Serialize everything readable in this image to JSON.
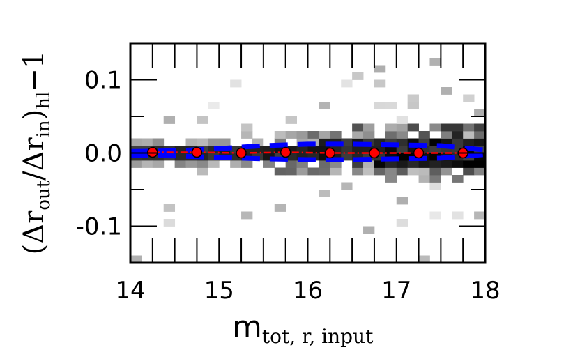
{
  "chart_data": {
    "type": "heatmap",
    "xlabel": {
      "main": "m",
      "sub": "tot, r, input"
    },
    "ylabel": {
      "text": "(Δr",
      "sub1": "out",
      "mid": "/Δr",
      "sub2": "in",
      "close": ")",
      "sub3": "hl",
      "tail": "−1"
    },
    "xlim": [
      14,
      18
    ],
    "ylim": [
      -0.15,
      0.15
    ],
    "x_ticks": [
      14,
      15,
      16,
      17,
      18
    ],
    "x_tick_labels": [
      "14",
      "15",
      "16",
      "17",
      "18"
    ],
    "y_ticks": [
      0.1,
      0.0,
      -0.1
    ],
    "y_tick_labels": [
      "0.1",
      "0.0",
      "-0.1"
    ],
    "grid": false,
    "heatmap": {
      "x_bin_width": 0.125,
      "y_bin_width": 0.01,
      "colormap": "greys",
      "core_bins": [
        {
          "x": 14.25,
          "y": 0.005,
          "count": 0.7
        },
        {
          "x": 14.75,
          "y": 0.005,
          "count": 0.8
        },
        {
          "x": 15.25,
          "y": 0.005,
          "count": 0.85
        },
        {
          "x": 15.75,
          "y": 0.005,
          "count": 0.9
        },
        {
          "x": 16.25,
          "y": 0.005,
          "count": 0.9
        },
        {
          "x": 16.75,
          "y": 0.005,
          "count": 0.95
        },
        {
          "x": 17.25,
          "y": 0.005,
          "count": 1.0
        },
        {
          "x": 17.75,
          "y": 0.005,
          "count": 1.0
        }
      ]
    },
    "series": [
      {
        "style": "red-dashdot-with-markers",
        "x": [
          14.25,
          14.75,
          15.25,
          15.75,
          16.25,
          16.75,
          17.25,
          17.75
        ],
        "y": [
          0.001,
          0.001,
          0.0,
          0.001,
          0.0,
          0.0,
          0.0,
          0.0
        ]
      },
      {
        "style": "blue-dashed-upper",
        "x": [
          14.0,
          14.5,
          15.0,
          15.5,
          16.0,
          16.5,
          17.0,
          17.5,
          18.0
        ],
        "y": [
          0.002,
          0.003,
          0.006,
          0.01,
          0.012,
          0.012,
          0.011,
          0.01,
          0.004
        ]
      },
      {
        "style": "blue-dashed-lower",
        "x": [
          14.0,
          14.5,
          15.0,
          15.5,
          16.0,
          16.5,
          17.0,
          17.5,
          18.0
        ],
        "y": [
          -0.003,
          -0.004,
          -0.006,
          -0.008,
          -0.009,
          -0.009,
          -0.008,
          -0.007,
          -0.002
        ]
      }
    ],
    "colors": {
      "median": "#ff0000",
      "percentile": "#0000ff",
      "heat": "#000000"
    }
  }
}
